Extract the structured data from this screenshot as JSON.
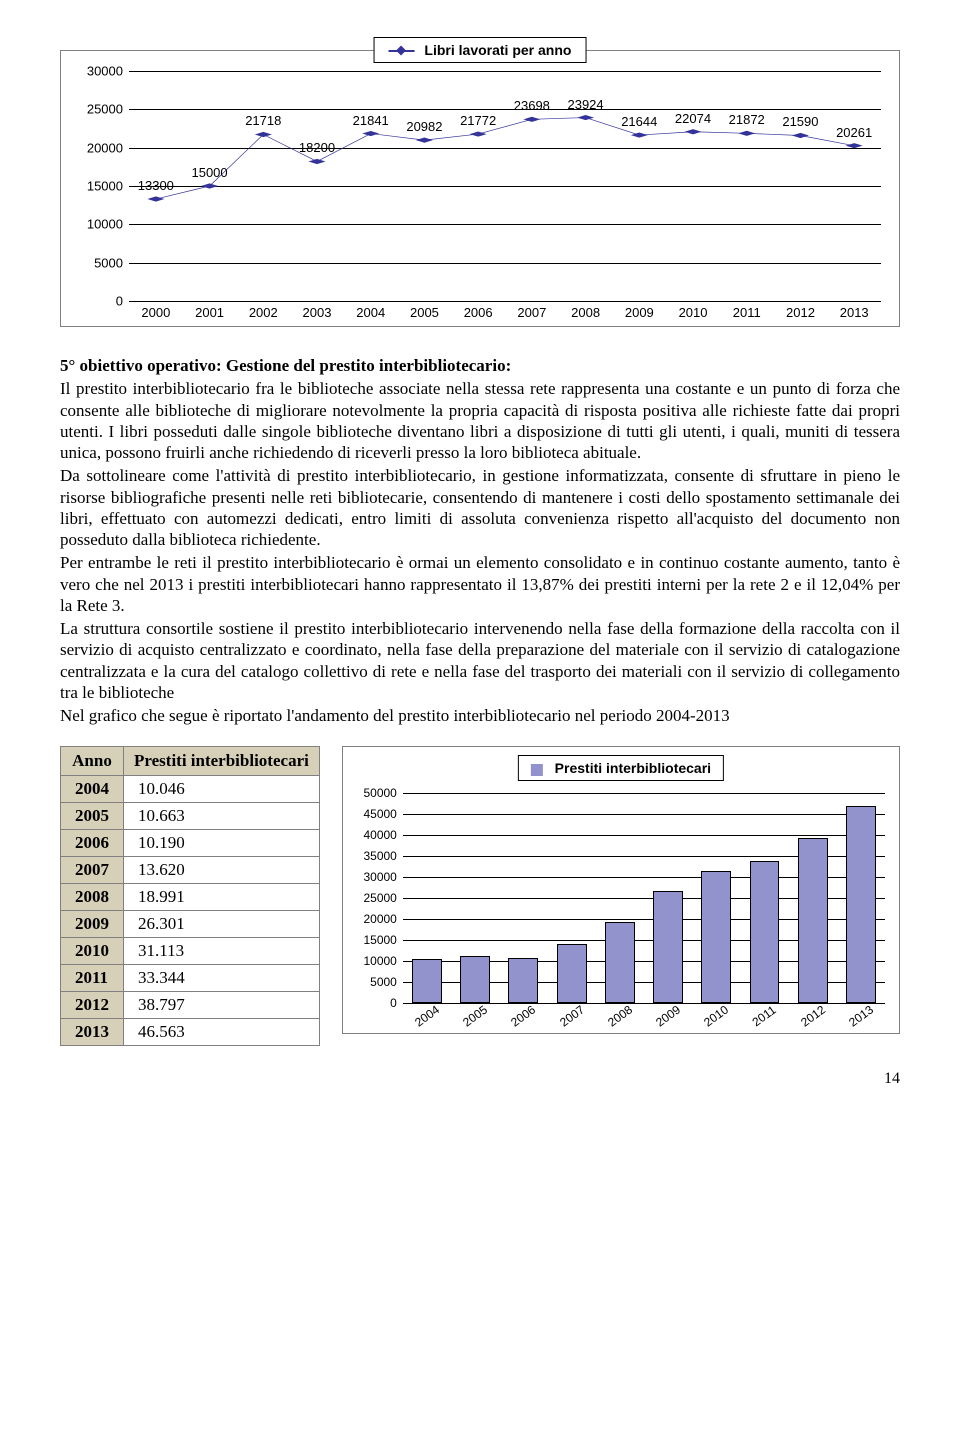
{
  "line_chart": {
    "legend_label": "Libri lavorati per anno",
    "years": [
      "2000",
      "2001",
      "2002",
      "2003",
      "2004",
      "2005",
      "2006",
      "2007",
      "2008",
      "2009",
      "2010",
      "2011",
      "2012",
      "2013"
    ],
    "values": [
      13300,
      15000,
      21718,
      18200,
      21841,
      20982,
      21772,
      23698,
      23924,
      21644,
      22074,
      21872,
      21590,
      20261
    ],
    "yticks": [
      0,
      5000,
      10000,
      15000,
      20000,
      25000,
      30000
    ],
    "ylim": [
      0,
      30000
    ],
    "line_color": "#33339a",
    "marker_color": "#33339a",
    "grid_color": "#000000",
    "background_color": "#ffffff",
    "label_fontsize": 13
  },
  "text": {
    "heading": "5° obiettivo operativo: Gestione del prestito interbibliotecario:",
    "p1": "Il prestito interbibliotecario fra le biblioteche associate nella stessa rete rappresenta una costante e un punto di forza che consente alle biblioteche di migliorare notevolmente la propria capacità di risposta positiva alle richieste fatte dai propri utenti. I libri posseduti dalle singole biblioteche diventano libri a disposizione di tutti gli utenti, i quali, muniti di tessera unica, possono fruirli anche richiedendo di riceverli presso la loro biblioteca abituale.",
    "p2": "Da sottolineare come l'attività di prestito interbibliotecario, in gestione informatizzata, consente di sfruttare in pieno le risorse bibliografiche presenti nelle reti bibliotecarie, consentendo di mantenere i costi dello spostamento settimanale dei libri, effettuato con automezzi dedicati, entro limiti di assoluta convenienza rispetto all'acquisto del documento non posseduto dalla biblioteca richiedente.",
    "p3": "Per entrambe le reti il prestito interbibliotecario è ormai un elemento consolidato e in continuo costante aumento, tanto è vero che nel 2013 i prestiti interbibliotecari hanno rappresentato il 13,87% dei prestiti interni per la rete 2 e il 12,04% per la Rete 3.",
    "p4": "La struttura consortile sostiene il prestito interbibliotecario intervenendo nella fase della formazione della raccolta con il servizio di acquisto centralizzato e coordinato, nella fase della preparazione del materiale con il servizio di catalogazione centralizzata e la cura del catalogo collettivo di rete e nella fase del trasporto dei materiali con il servizio di collegamento tra le biblioteche",
    "p5": "Nel grafico che segue è riportato l'andamento del prestito interbibliotecario nel periodo 2004-2013"
  },
  "table": {
    "col_year": "Anno",
    "col_val": "Prestiti interbibliotecari",
    "rows": [
      {
        "year": "2004",
        "val": "10.046"
      },
      {
        "year": "2005",
        "val": "10.663"
      },
      {
        "year": "2006",
        "val": "10.190"
      },
      {
        "year": "2007",
        "val": "13.620"
      },
      {
        "year": "2008",
        "val": "18.991"
      },
      {
        "year": "2009",
        "val": "26.301"
      },
      {
        "year": "2010",
        "val": "31.113"
      },
      {
        "year": "2011",
        "val": "33.344"
      },
      {
        "year": "2012",
        "val": "38.797"
      },
      {
        "year": "2013",
        "val": "46.563"
      }
    ]
  },
  "bar_chart": {
    "legend_label": "Prestiti interbibliotecari",
    "years": [
      "2004",
      "2005",
      "2006",
      "2007",
      "2008",
      "2009",
      "2010",
      "2011",
      "2012",
      "2013"
    ],
    "values": [
      10046,
      10663,
      10190,
      13620,
      18991,
      26301,
      31113,
      33344,
      38797,
      46563
    ],
    "yticks": [
      0,
      5000,
      10000,
      15000,
      20000,
      25000,
      30000,
      35000,
      40000,
      45000,
      50000
    ],
    "ylim": [
      0,
      50000
    ],
    "bar_color": "#9292cd",
    "bar_border": "#000000",
    "grid_color": "#000000",
    "background_color": "#ffffff",
    "label_fontsize": 12
  },
  "page_number": "14"
}
